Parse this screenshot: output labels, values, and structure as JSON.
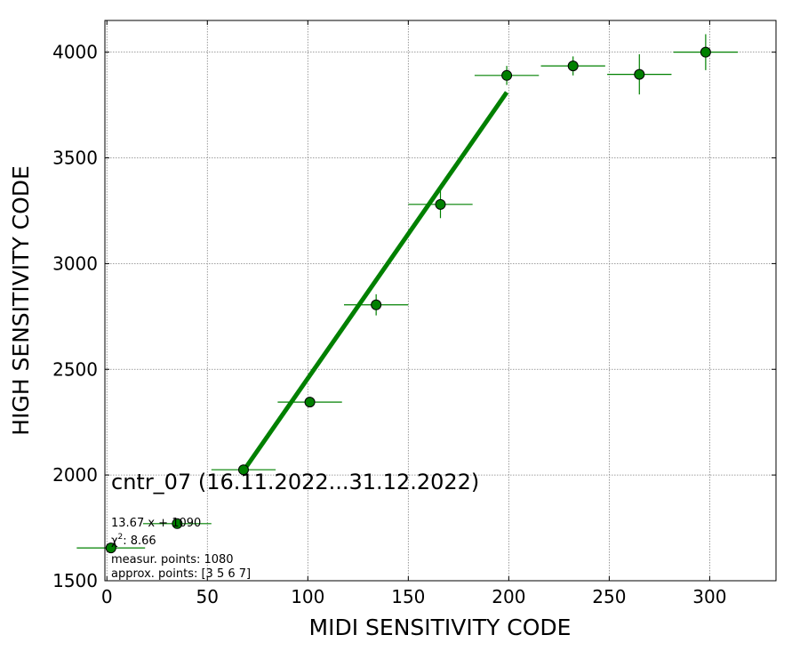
{
  "chart_data": {
    "type": "scatter",
    "xlabel": "MIDI SENSITIVITY CODE",
    "ylabel": "HIGH SENSITIVITY CODE",
    "xlim": [
      -1,
      333
    ],
    "ylim": [
      1500,
      4150
    ],
    "xticks": [
      0,
      50,
      100,
      150,
      200,
      250,
      300
    ],
    "yticks": [
      1500,
      2000,
      2500,
      3000,
      3500,
      4000
    ],
    "grid": true,
    "colors": {
      "series": "#008000",
      "marker_edge": "#000000",
      "grid": "#808080"
    },
    "points": [
      {
        "x": 2,
        "y": 1655,
        "xerr": 17,
        "yerr": 12
      },
      {
        "x": 35,
        "y": 1770,
        "xerr": 17,
        "yerr": 12
      },
      {
        "x": 68,
        "y": 2025,
        "xerr": 16,
        "yerr": 12
      },
      {
        "x": 101,
        "y": 2345,
        "xerr": 16,
        "yerr": 18
      },
      {
        "x": 134,
        "y": 2805,
        "xerr": 16,
        "yerr": 50
      },
      {
        "x": 166,
        "y": 3280,
        "xerr": 16,
        "yerr": 65
      },
      {
        "x": 199,
        "y": 3890,
        "xerr": 16,
        "yerr": 45
      },
      {
        "x": 232,
        "y": 3935,
        "xerr": 16,
        "yerr": 45
      },
      {
        "x": 265,
        "y": 3895,
        "xerr": 16,
        "yerr": 95
      },
      {
        "x": 298,
        "y": 4000,
        "xerr": 16,
        "yerr": 85
      }
    ],
    "fit_line": {
      "x": [
        68,
        199
      ],
      "y": [
        2020,
        3810
      ]
    },
    "annotations": {
      "title": "cntr_07 (16.11.2022...31.12.2022)",
      "equation": "13.67 x + 1090",
      "chi2_label": "χ",
      "chi2_sup": "2",
      "chi2_value": ": 8.66",
      "measur_points": "measur. points: 1080",
      "approx_points": "approx. points: [3 5 6 7]"
    }
  }
}
